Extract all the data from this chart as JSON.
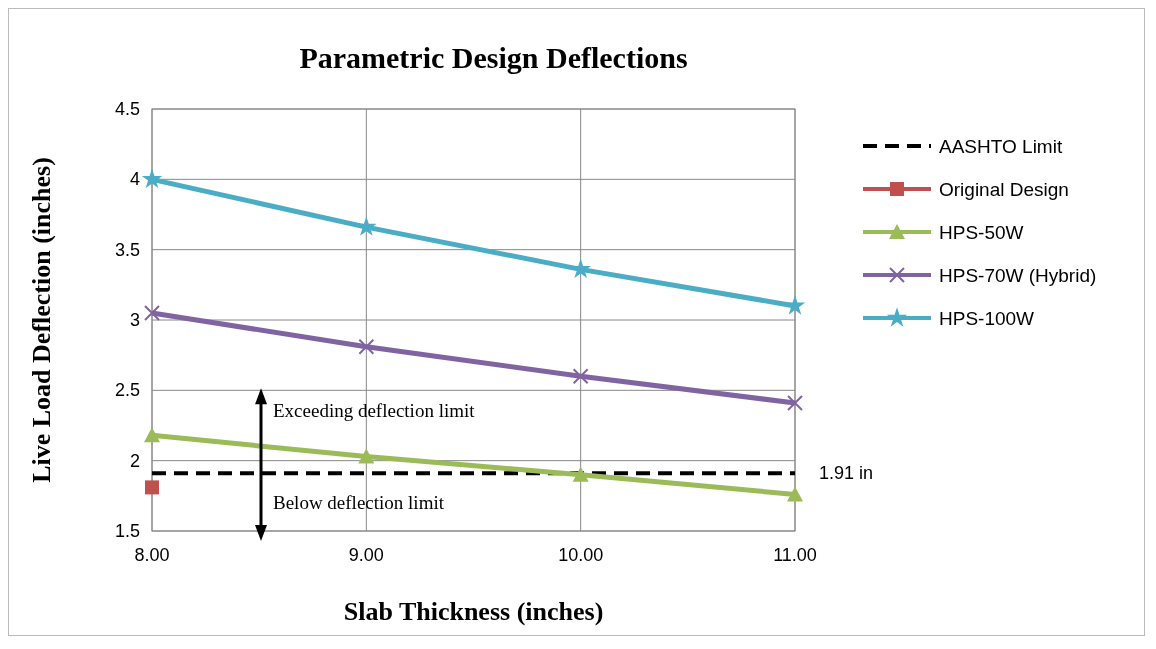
{
  "chart_data": {
    "type": "line",
    "title": "Parametric Design Deflections",
    "xlabel": "Slab Thickness (inches)",
    "ylabel": "Live Load Deflection (inches)",
    "x": [
      8,
      9,
      10,
      11
    ],
    "xlim": [
      8,
      11
    ],
    "xticks": [
      {
        "value": 8,
        "label": "8.00"
      },
      {
        "value": 9,
        "label": "9.00"
      },
      {
        "value": 10,
        "label": "10.00"
      },
      {
        "value": 11,
        "label": "11.00"
      }
    ],
    "ylim": [
      1.5,
      4.5
    ],
    "yticks": [
      1.5,
      2,
      2.5,
      3,
      3.5,
      4,
      4.5
    ],
    "grid": true,
    "legend": "right",
    "series": [
      {
        "name": "AASHTO Limit",
        "color": "#000000",
        "values": [
          1.91,
          1.91,
          1.91,
          1.91
        ],
        "line_style": "dashed",
        "marker": "none"
      },
      {
        "name": "Original Design",
        "color": "#c0504d",
        "values": [
          1.81,
          null,
          null,
          null
        ],
        "marker": "square"
      },
      {
        "name": "HPS-50W",
        "color": "#9bbb59",
        "values": [
          2.18,
          2.03,
          1.9,
          1.76
        ],
        "marker": "triangle"
      },
      {
        "name": "HPS-70W (Hybrid)",
        "color": "#8064a2",
        "values": [
          3.05,
          2.81,
          2.6,
          2.41
        ],
        "marker": "cross"
      },
      {
        "name": "HPS-100W",
        "color": "#4bacc6",
        "values": [
          4.0,
          3.66,
          3.36,
          3.1
        ],
        "marker": "star"
      }
    ],
    "annotations": [
      "Exceeding deflection limit",
      "Below deflection limit",
      {
        "text": "1.91 in",
        "x": 11,
        "y": 1.91
      }
    ]
  }
}
